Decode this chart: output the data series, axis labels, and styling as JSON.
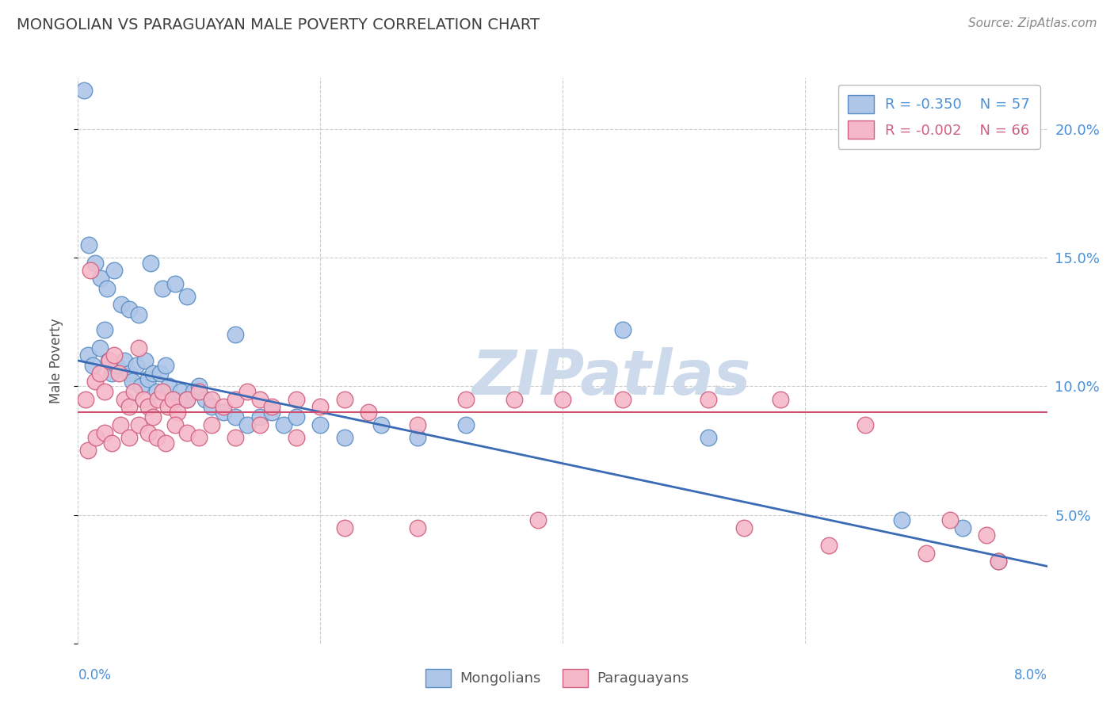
{
  "title": "MONGOLIAN VS PARAGUAYAN MALE POVERTY CORRELATION CHART",
  "source": "Source: ZipAtlas.com",
  "ylabel": "Male Poverty",
  "xlim": [
    0.0,
    8.0
  ],
  "ylim": [
    0.0,
    22.0
  ],
  "yticks": [
    0,
    5,
    10,
    15,
    20
  ],
  "blue_color": "#aec6e8",
  "blue_edge_color": "#5b8ec4",
  "pink_color": "#f5b8c8",
  "pink_edge_color": "#d06080",
  "blue_line_color": "#3b6bb5",
  "pink_line_color": "#d05070",
  "legend_label_blue": "Mongolians",
  "legend_label_pink": "Paraguayans",
  "background_color": "#ffffff",
  "grid_color": "#cccccc",
  "title_color": "#404040",
  "right_axis_color": "#4a90d9",
  "watermark_color": "#cddaeb",
  "blue_line_x0": 0.0,
  "blue_line_y0": 11.0,
  "blue_line_x1": 8.0,
  "blue_line_y1": 3.0,
  "pink_line_y": 9.0,
  "mongolian_x": [
    0.08,
    0.12,
    0.18,
    0.22,
    0.25,
    0.28,
    0.32,
    0.38,
    0.42,
    0.45,
    0.48,
    0.52,
    0.55,
    0.58,
    0.62,
    0.65,
    0.68,
    0.72,
    0.75,
    0.8,
    0.85,
    0.9,
    0.95,
    1.0,
    1.05,
    1.1,
    1.2,
    1.3,
    1.4,
    1.5,
    1.6,
    1.7,
    1.8,
    2.0,
    2.2,
    2.5,
    2.8,
    3.2,
    4.5,
    5.2,
    6.8,
    7.3,
    7.6,
    0.05,
    0.09,
    0.14,
    0.19,
    0.24,
    0.3,
    0.36,
    0.42,
    0.5,
    0.6,
    0.7,
    0.8,
    0.9,
    1.3
  ],
  "mongolian_y": [
    11.2,
    10.8,
    11.5,
    12.2,
    11.0,
    10.5,
    10.8,
    11.0,
    10.5,
    10.2,
    10.8,
    10.0,
    11.0,
    10.3,
    10.5,
    9.8,
    10.5,
    10.8,
    10.0,
    9.5,
    9.8,
    9.5,
    9.8,
    10.0,
    9.5,
    9.2,
    9.0,
    8.8,
    8.5,
    8.8,
    9.0,
    8.5,
    8.8,
    8.5,
    8.0,
    8.5,
    8.0,
    8.5,
    12.2,
    8.0,
    4.8,
    4.5,
    3.2,
    21.5,
    15.5,
    14.8,
    14.2,
    13.8,
    14.5,
    13.2,
    13.0,
    12.8,
    14.8,
    13.8,
    14.0,
    13.5,
    12.0
  ],
  "paraguayan_x": [
    0.06,
    0.1,
    0.14,
    0.18,
    0.22,
    0.26,
    0.3,
    0.34,
    0.38,
    0.42,
    0.46,
    0.5,
    0.54,
    0.58,
    0.62,
    0.66,
    0.7,
    0.74,
    0.78,
    0.82,
    0.9,
    1.0,
    1.1,
    1.2,
    1.3,
    1.4,
    1.5,
    1.6,
    1.8,
    2.0,
    2.2,
    2.4,
    2.8,
    3.2,
    3.6,
    4.0,
    4.5,
    5.2,
    5.8,
    6.5,
    7.2,
    7.6,
    0.08,
    0.15,
    0.22,
    0.28,
    0.35,
    0.42,
    0.5,
    0.58,
    0.65,
    0.72,
    0.8,
    0.9,
    1.0,
    1.1,
    1.3,
    1.5,
    1.8,
    2.2,
    2.8,
    3.8,
    5.5,
    6.2,
    7.0,
    7.5
  ],
  "paraguayan_y": [
    9.5,
    14.5,
    10.2,
    10.5,
    9.8,
    11.0,
    11.2,
    10.5,
    9.5,
    9.2,
    9.8,
    11.5,
    9.5,
    9.2,
    8.8,
    9.5,
    9.8,
    9.2,
    9.5,
    9.0,
    9.5,
    9.8,
    9.5,
    9.2,
    9.5,
    9.8,
    9.5,
    9.2,
    9.5,
    9.2,
    9.5,
    9.0,
    8.5,
    9.5,
    9.5,
    9.5,
    9.5,
    9.5,
    9.5,
    8.5,
    4.8,
    3.2,
    7.5,
    8.0,
    8.2,
    7.8,
    8.5,
    8.0,
    8.5,
    8.2,
    8.0,
    7.8,
    8.5,
    8.2,
    8.0,
    8.5,
    8.0,
    8.5,
    8.0,
    4.5,
    4.5,
    4.8,
    4.5,
    3.8,
    3.5,
    4.2
  ]
}
